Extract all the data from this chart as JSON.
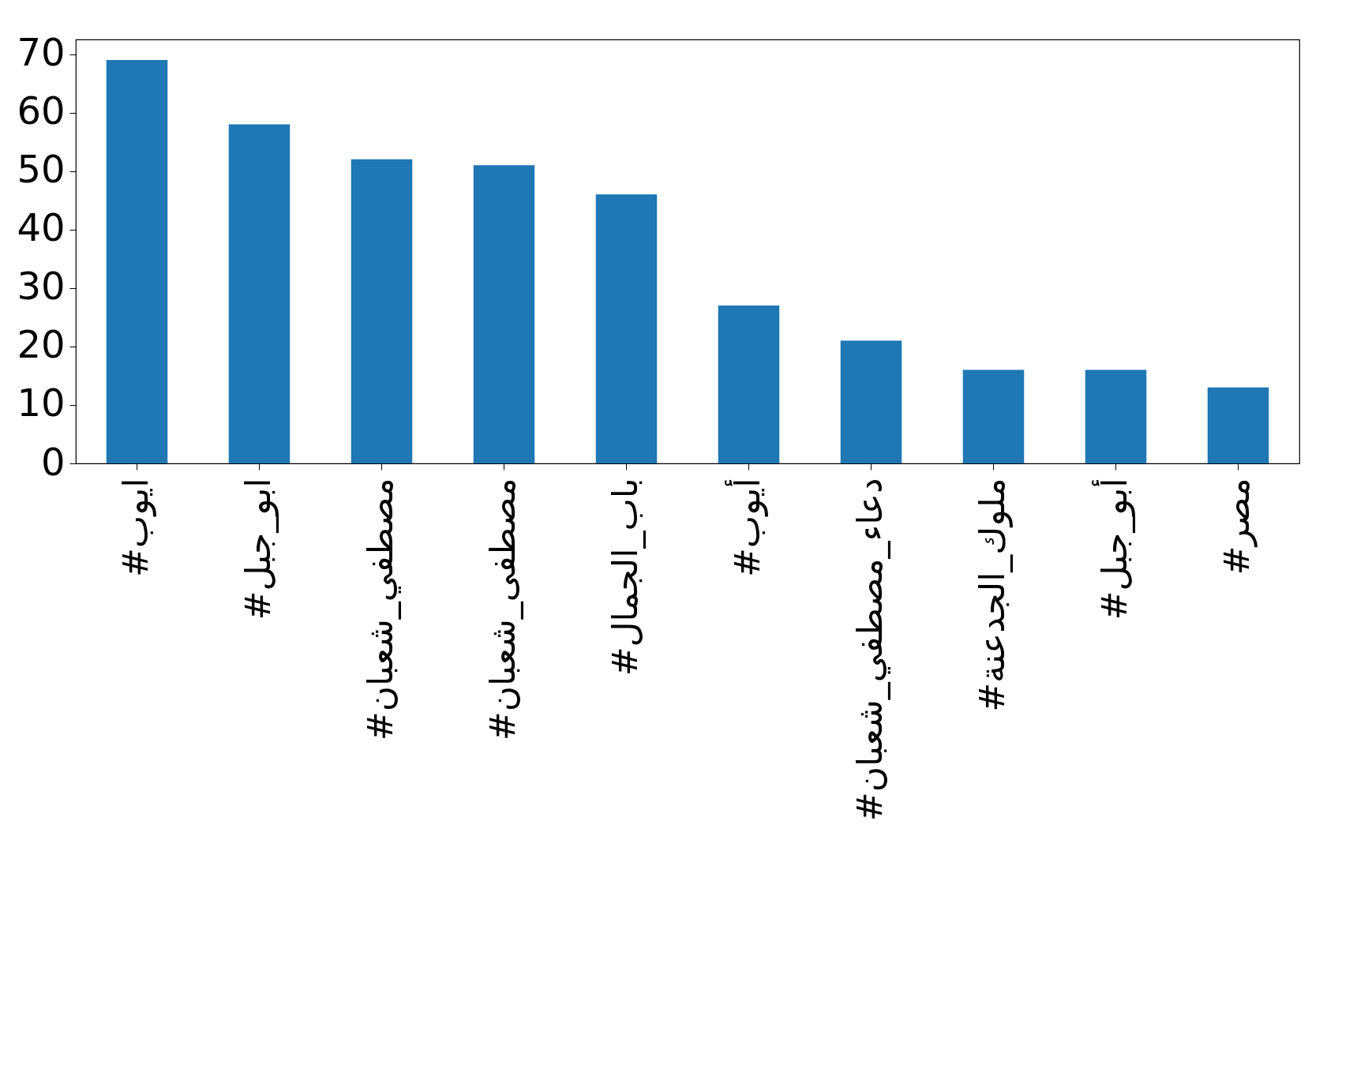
{
  "chart_data": {
    "type": "bar",
    "categories": [
      "#ايوب",
      "#ابو_جبل",
      "#مصطفي_شعبان",
      "#مصطفى_شعبان",
      "#باب_الجمال",
      "#أيوب",
      "#دعاء_مصطفي_شعبان",
      "#ملوك_الجدعنة",
      "#أبو_جبل",
      "#مصر"
    ],
    "values": [
      69,
      58,
      52,
      51,
      46,
      27,
      21,
      16,
      16,
      13
    ],
    "color": "#1f77b4",
    "ylim": [
      0,
      72.5
    ],
    "yticks": [
      0,
      10,
      20,
      30,
      40,
      50,
      60,
      70
    ],
    "grid": false
  }
}
